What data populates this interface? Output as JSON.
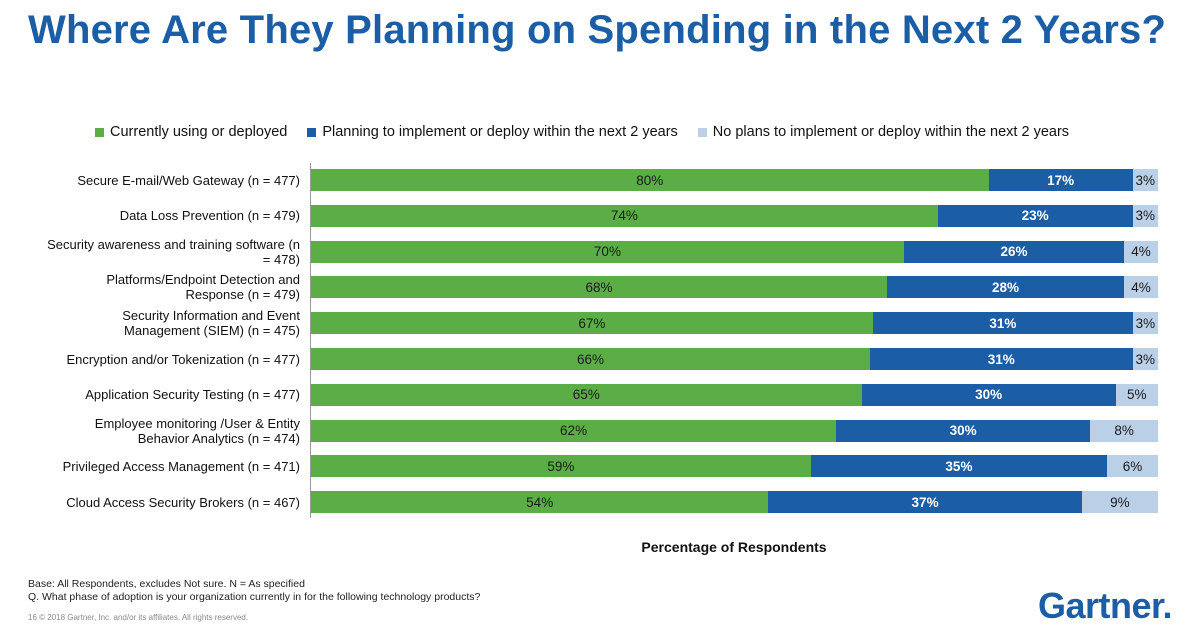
{
  "header": {
    "title": "Where Are They Planning on Spending in the Next 2 Years?"
  },
  "colors": {
    "title": "#1b5ea5",
    "current": "#5aae45",
    "planning": "#1b5ea5",
    "noplans": "#bad0e6"
  },
  "chart_data": {
    "type": "bar",
    "orientation": "horizontal",
    "stacked": true,
    "xlabel": "Percentage of Respondents",
    "xlim": [
      0,
      100
    ],
    "legend_position": "top",
    "categories": [
      "Secure E-mail/Web Gateway (n = 477)",
      "Data Loss Prevention (n = 479)",
      "Security awareness and training software (n = 478)",
      "Platforms/Endpoint Detection and Response (n = 479)",
      "Security Information and Event Management (SIEM) (n = 475)",
      "Encryption and/or Tokenization (n = 477)",
      "Application Security Testing (n = 477)",
      "Employee monitoring /User & Entity Behavior Analytics (n = 474)",
      "Privileged Access Management (n = 471)",
      "Cloud Access Security Brokers (n = 467)"
    ],
    "label_lines": [
      [
        "Secure E-mail/Web Gateway (n = 477)"
      ],
      [
        "Data Loss Prevention (n = 479)"
      ],
      [
        "Security awareness and training software (n",
        "= 478)"
      ],
      [
        "Platforms/Endpoint Detection and",
        "Response (n = 479)"
      ],
      [
        "Security Information and Event",
        "Management (SIEM) (n = 475)"
      ],
      [
        "Encryption and/or Tokenization (n = 477)"
      ],
      [
        "Application Security Testing (n = 477)"
      ],
      [
        "Employee monitoring /User & Entity",
        "Behavior Analytics (n = 474)"
      ],
      [
        "Privileged Access Management (n = 471)"
      ],
      [
        "Cloud Access Security Brokers (n = 467)"
      ]
    ],
    "series": [
      {
        "name": "Currently using or deployed",
        "values": [
          80,
          74,
          70,
          68,
          67,
          66,
          65,
          62,
          59,
          54
        ]
      },
      {
        "name": "Planning to implement or deploy within the next 2 years",
        "values": [
          17,
          23,
          26,
          28,
          31,
          31,
          30,
          30,
          35,
          37
        ]
      },
      {
        "name": "No plans to implement or deploy within the next 2 years",
        "values": [
          3,
          3,
          4,
          4,
          3,
          3,
          5,
          8,
          6,
          9
        ]
      }
    ]
  },
  "footer": {
    "base_note": "Base: All Respondents, excludes Not sure. N = As specified",
    "question": "Q. What phase of adoption is your organization currently in for the following technology products?",
    "copyright": "16      © 2018 Gartner, Inc. and/or its affiliates. All rights reserved.",
    "logo": "Gartner."
  }
}
